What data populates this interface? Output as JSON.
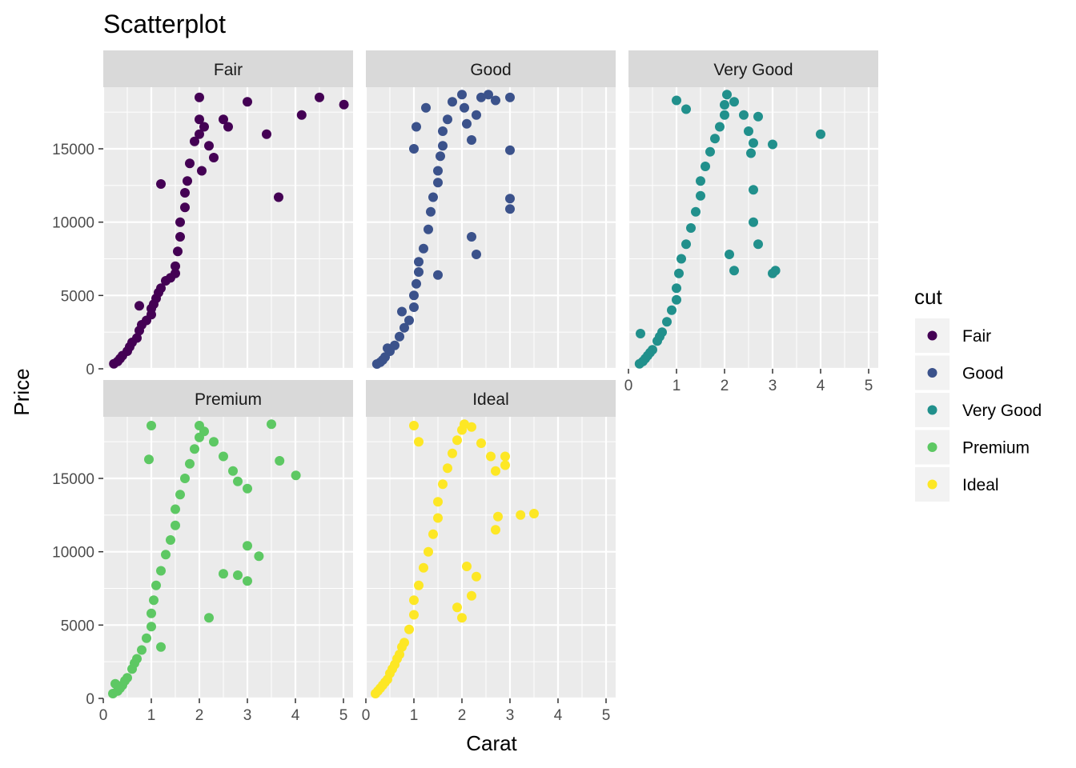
{
  "chart_data": {
    "type": "scatter",
    "title": "Scatterplot",
    "xlabel": "Carat",
    "ylabel": "Price",
    "facet_by": "cut",
    "xlim": [
      0,
      5.2
    ],
    "ylim": [
      0,
      19200
    ],
    "x_ticks": [
      0,
      1,
      2,
      3,
      4,
      5
    ],
    "y_ticks": [
      0,
      5000,
      10000,
      15000
    ],
    "grid": true,
    "legend": {
      "title": "cut",
      "position": "right"
    },
    "facets": [
      {
        "name": "Fair",
        "color": "#440154",
        "points": [
          [
            0.22,
            337
          ],
          [
            0.3,
            500
          ],
          [
            0.35,
            700
          ],
          [
            0.4,
            900
          ],
          [
            0.5,
            1200
          ],
          [
            0.55,
            1500
          ],
          [
            0.6,
            1800
          ],
          [
            0.7,
            2100
          ],
          [
            0.75,
            2600
          ],
          [
            0.8,
            3000
          ],
          [
            0.9,
            3300
          ],
          [
            1.0,
            3700
          ],
          [
            1.0,
            4100
          ],
          [
            1.05,
            4400
          ],
          [
            1.1,
            4800
          ],
          [
            1.15,
            5200
          ],
          [
            1.2,
            5500
          ],
          [
            1.3,
            6000
          ],
          [
            1.4,
            6200
          ],
          [
            1.5,
            7000
          ],
          [
            1.5,
            6500
          ],
          [
            1.55,
            8000
          ],
          [
            1.6,
            9000
          ],
          [
            1.6,
            10000
          ],
          [
            1.7,
            11000
          ],
          [
            1.7,
            12000
          ],
          [
            1.75,
            12800
          ],
          [
            1.8,
            14000
          ],
          [
            1.9,
            15500
          ],
          [
            2.0,
            16000
          ],
          [
            2.0,
            17000
          ],
          [
            2.0,
            18500
          ],
          [
            2.05,
            13500
          ],
          [
            2.1,
            16500
          ],
          [
            2.2,
            15200
          ],
          [
            2.3,
            14400
          ],
          [
            2.5,
            17000
          ],
          [
            2.6,
            16500
          ],
          [
            3.0,
            18200
          ],
          [
            3.4,
            16000
          ],
          [
            3.65,
            11700
          ],
          [
            4.13,
            17300
          ],
          [
            4.5,
            18500
          ],
          [
            5.01,
            18018
          ],
          [
            0.75,
            4300
          ],
          [
            1.2,
            12600
          ]
        ]
      },
      {
        "name": "Good",
        "color": "#3b528b",
        "points": [
          [
            0.23,
            327
          ],
          [
            0.3,
            450
          ],
          [
            0.4,
            800
          ],
          [
            0.5,
            1200
          ],
          [
            0.6,
            1600
          ],
          [
            0.7,
            2200
          ],
          [
            0.8,
            2800
          ],
          [
            0.9,
            3300
          ],
          [
            1.0,
            4200
          ],
          [
            1.0,
            5000
          ],
          [
            1.05,
            5800
          ],
          [
            1.1,
            6600
          ],
          [
            1.1,
            7300
          ],
          [
            1.2,
            8200
          ],
          [
            1.3,
            9500
          ],
          [
            1.35,
            10700
          ],
          [
            1.4,
            11700
          ],
          [
            1.5,
            12700
          ],
          [
            1.5,
            13500
          ],
          [
            1.55,
            14500
          ],
          [
            1.6,
            15200
          ],
          [
            1.6,
            16200
          ],
          [
            1.7,
            17000
          ],
          [
            1.8,
            18200
          ],
          [
            2.0,
            18700
          ],
          [
            2.05,
            17800
          ],
          [
            2.1,
            16700
          ],
          [
            2.2,
            15600
          ],
          [
            2.3,
            17300
          ],
          [
            2.4,
            18500
          ],
          [
            2.55,
            18700
          ],
          [
            2.7,
            18300
          ],
          [
            3.0,
            18500
          ],
          [
            3.0,
            14900
          ],
          [
            3.0,
            11600
          ],
          [
            3.0,
            10900
          ],
          [
            2.3,
            7800
          ],
          [
            2.2,
            9000
          ],
          [
            1.0,
            15000
          ],
          [
            1.05,
            16500
          ],
          [
            1.25,
            17800
          ],
          [
            0.35,
            600
          ],
          [
            0.45,
            1400
          ],
          [
            0.75,
            3900
          ],
          [
            1.5,
            6400
          ]
        ]
      },
      {
        "name": "Very Good",
        "color": "#21908c",
        "points": [
          [
            0.23,
            336
          ],
          [
            0.3,
            500
          ],
          [
            0.4,
            900
          ],
          [
            0.5,
            1300
          ],
          [
            0.6,
            1900
          ],
          [
            0.7,
            2500
          ],
          [
            0.8,
            3200
          ],
          [
            0.9,
            4000
          ],
          [
            1.0,
            4700
          ],
          [
            1.0,
            5500
          ],
          [
            1.05,
            6500
          ],
          [
            1.1,
            7500
          ],
          [
            1.2,
            8500
          ],
          [
            1.3,
            9600
          ],
          [
            1.4,
            10700
          ],
          [
            1.5,
            11800
          ],
          [
            1.5,
            12800
          ],
          [
            1.6,
            13800
          ],
          [
            1.7,
            14800
          ],
          [
            1.8,
            15700
          ],
          [
            1.9,
            16500
          ],
          [
            2.0,
            17300
          ],
          [
            2.0,
            18000
          ],
          [
            2.05,
            18700
          ],
          [
            2.2,
            18200
          ],
          [
            2.4,
            17300
          ],
          [
            2.5,
            16200
          ],
          [
            2.6,
            15400
          ],
          [
            2.7,
            17200
          ],
          [
            2.55,
            14700
          ],
          [
            2.6,
            12200
          ],
          [
            2.6,
            10000
          ],
          [
            2.7,
            8500
          ],
          [
            3.0,
            15300
          ],
          [
            3.0,
            6500
          ],
          [
            3.06,
            6700
          ],
          [
            4.0,
            16000
          ],
          [
            0.25,
            2400
          ],
          [
            1.0,
            18300
          ],
          [
            1.2,
            17700
          ],
          [
            2.2,
            6700
          ],
          [
            2.1,
            7800
          ],
          [
            0.35,
            700
          ],
          [
            0.45,
            1100
          ],
          [
            0.65,
            2200
          ]
        ]
      },
      {
        "name": "Premium",
        "color": "#5dc863",
        "points": [
          [
            0.2,
            326
          ],
          [
            0.3,
            500
          ],
          [
            0.4,
            900
          ],
          [
            0.5,
            1400
          ],
          [
            0.6,
            2000
          ],
          [
            0.7,
            2700
          ],
          [
            0.8,
            3300
          ],
          [
            0.9,
            4100
          ],
          [
            1.0,
            4900
          ],
          [
            1.0,
            5800
          ],
          [
            1.05,
            6700
          ],
          [
            1.1,
            7700
          ],
          [
            1.2,
            8700
          ],
          [
            1.3,
            9800
          ],
          [
            1.4,
            10800
          ],
          [
            1.5,
            11800
          ],
          [
            1.5,
            12900
          ],
          [
            1.6,
            13900
          ],
          [
            1.7,
            15000
          ],
          [
            1.8,
            16000
          ],
          [
            1.9,
            17000
          ],
          [
            2.0,
            17800
          ],
          [
            2.0,
            18600
          ],
          [
            2.1,
            18200
          ],
          [
            2.3,
            17500
          ],
          [
            2.5,
            16500
          ],
          [
            2.7,
            15500
          ],
          [
            2.8,
            14800
          ],
          [
            3.0,
            14300
          ],
          [
            3.0,
            10400
          ],
          [
            3.0,
            8000
          ],
          [
            3.24,
            9700
          ],
          [
            3.5,
            18700
          ],
          [
            3.67,
            16200
          ],
          [
            4.01,
            15200
          ],
          [
            0.95,
            16300
          ],
          [
            1.0,
            18600
          ],
          [
            2.2,
            5500
          ],
          [
            2.5,
            8500
          ],
          [
            0.25,
            1000
          ],
          [
            0.35,
            700
          ],
          [
            0.45,
            1200
          ],
          [
            0.65,
            2400
          ],
          [
            1.2,
            3500
          ],
          [
            2.8,
            8400
          ]
        ]
      },
      {
        "name": "Ideal",
        "color": "#fde725",
        "points": [
          [
            0.2,
            326
          ],
          [
            0.25,
            500
          ],
          [
            0.3,
            700
          ],
          [
            0.4,
            1100
          ],
          [
            0.5,
            1700
          ],
          [
            0.6,
            2300
          ],
          [
            0.7,
            3000
          ],
          [
            0.8,
            3800
          ],
          [
            0.9,
            4700
          ],
          [
            1.0,
            5700
          ],
          [
            1.0,
            6700
          ],
          [
            1.1,
            7700
          ],
          [
            1.2,
            8900
          ],
          [
            1.3,
            10000
          ],
          [
            1.4,
            11200
          ],
          [
            1.5,
            12300
          ],
          [
            1.5,
            13400
          ],
          [
            1.6,
            14600
          ],
          [
            1.7,
            15700
          ],
          [
            1.8,
            16700
          ],
          [
            1.9,
            17600
          ],
          [
            2.0,
            18300
          ],
          [
            2.05,
            18700
          ],
          [
            2.2,
            18500
          ],
          [
            2.4,
            17400
          ],
          [
            2.6,
            16500
          ],
          [
            2.7,
            15500
          ],
          [
            2.75,
            12400
          ],
          [
            2.9,
            15900
          ],
          [
            2.9,
            16500
          ],
          [
            3.22,
            12500
          ],
          [
            3.5,
            12600
          ],
          [
            1.0,
            18600
          ],
          [
            1.1,
            17500
          ],
          [
            2.0,
            5500
          ],
          [
            2.2,
            7000
          ],
          [
            2.3,
            8300
          ],
          [
            2.1,
            9000
          ],
          [
            1.9,
            6200
          ],
          [
            0.35,
            900
          ],
          [
            0.45,
            1300
          ],
          [
            0.55,
            2000
          ],
          [
            0.65,
            2700
          ],
          [
            0.75,
            3500
          ],
          [
            2.7,
            11500
          ]
        ]
      }
    ]
  }
}
